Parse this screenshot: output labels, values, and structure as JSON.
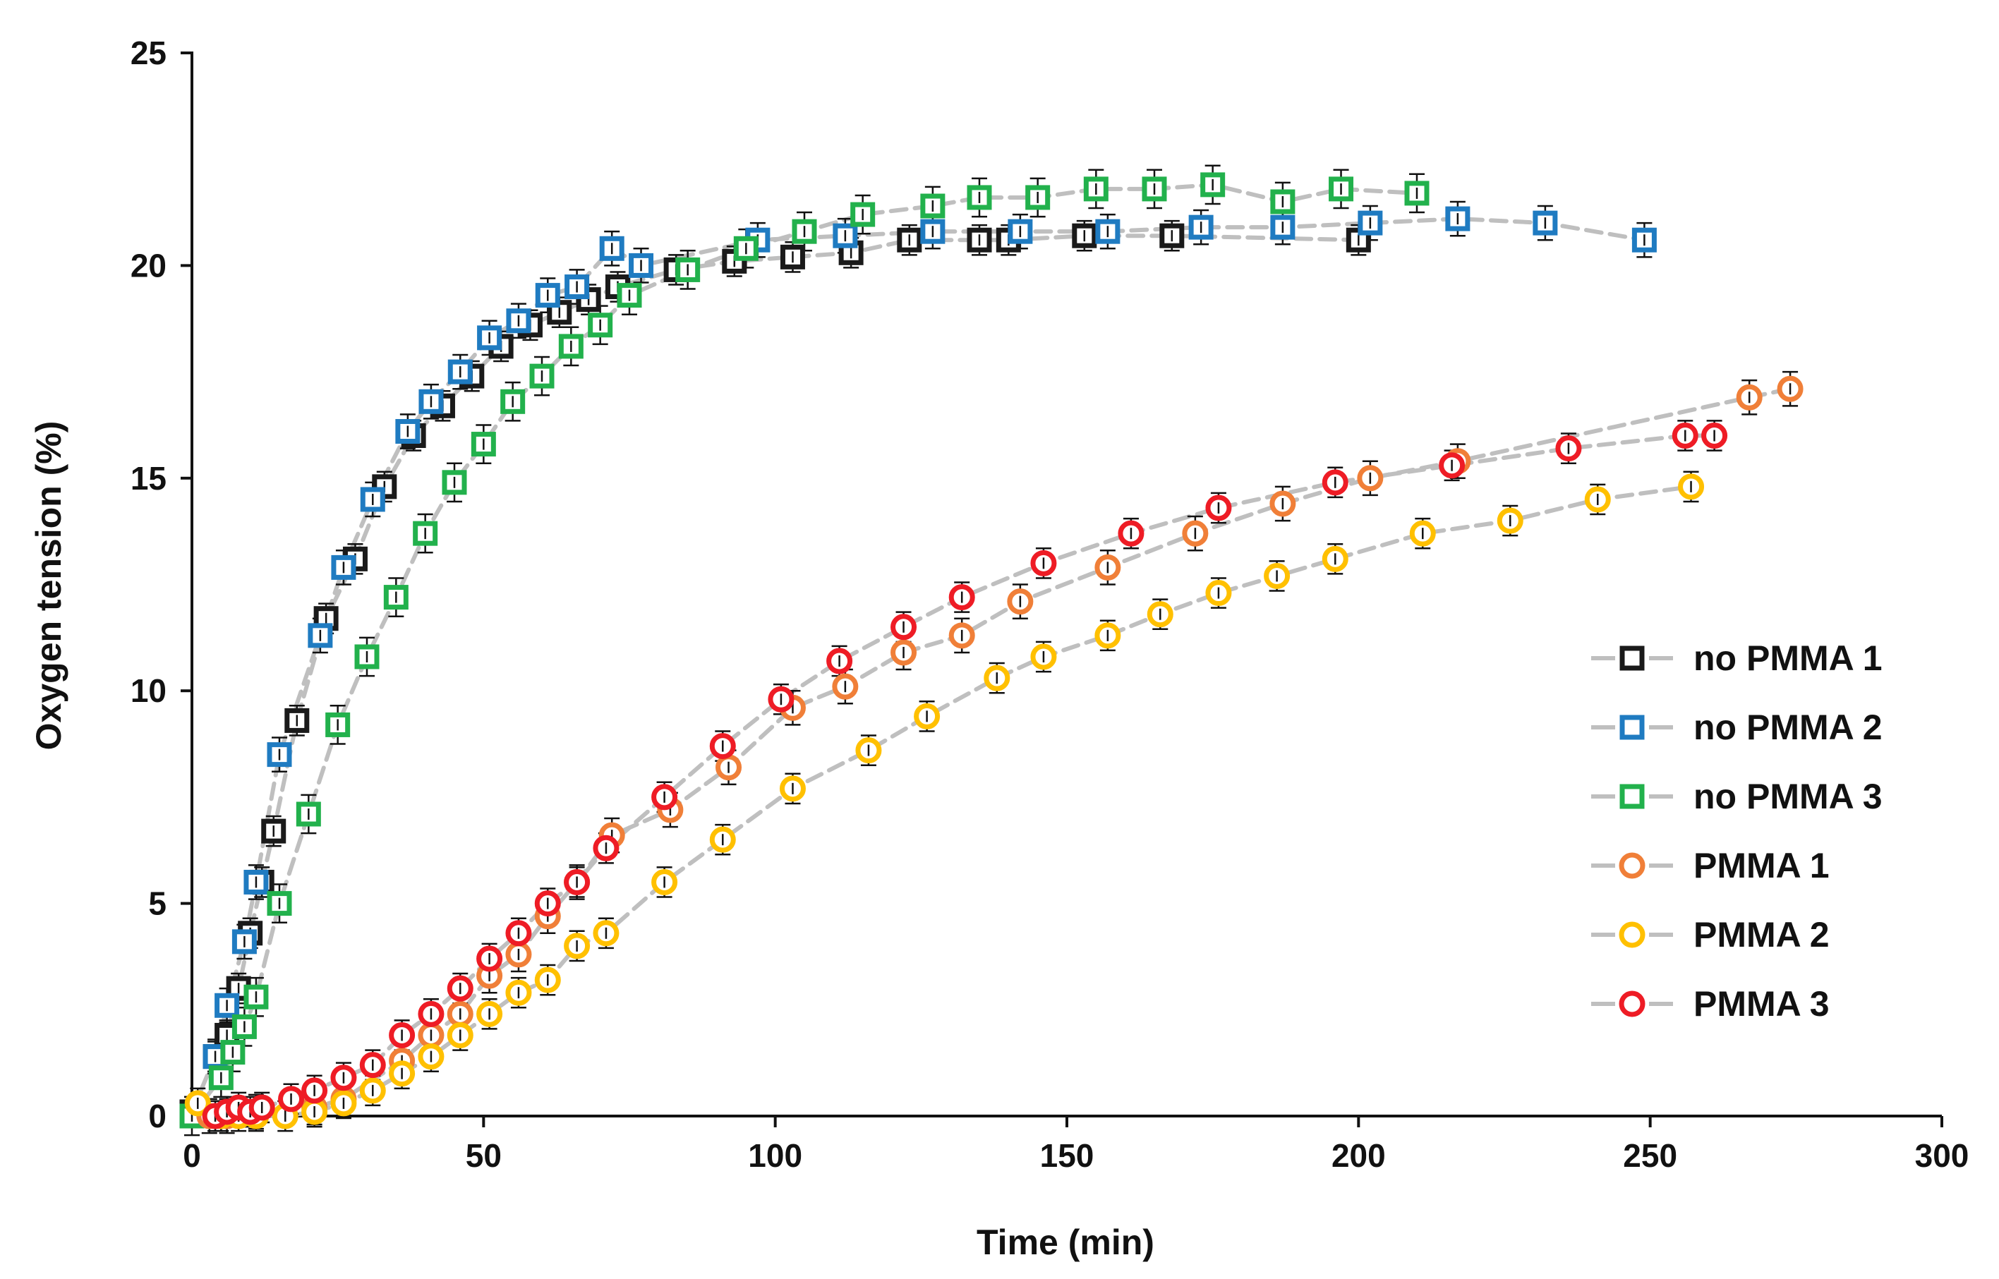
{
  "chart_data": {
    "type": "scatter",
    "title": "",
    "xlabel": "Time (min)",
    "ylabel": "Oxygen tension (%)",
    "xlim": [
      0,
      300
    ],
    "ylim": [
      0,
      25
    ],
    "xticks": [
      0,
      50,
      100,
      150,
      200,
      250,
      300
    ],
    "yticks": [
      0,
      5,
      10,
      15,
      20,
      25
    ],
    "grid": false,
    "legend_position": "right",
    "line_style": "dashed-gray",
    "series": [
      {
        "name": "no PMMA 1",
        "marker": "square",
        "color": "#1a1a1a",
        "x": [
          0,
          4,
          6,
          8,
          10,
          12,
          14,
          18,
          23,
          28,
          33,
          38,
          43,
          48,
          53,
          58,
          63,
          68,
          73,
          83,
          93,
          103,
          113,
          123,
          135,
          140,
          153,
          168,
          200
        ],
        "y": [
          0.1,
          1.4,
          1.9,
          3.0,
          4.3,
          5.5,
          6.7,
          9.3,
          11.7,
          13.1,
          14.8,
          16.0,
          16.7,
          17.4,
          18.1,
          18.6,
          18.9,
          19.2,
          19.5,
          19.9,
          20.1,
          20.2,
          20.3,
          20.6,
          20.6,
          20.6,
          20.7,
          20.7,
          20.6
        ],
        "err": 0.35
      },
      {
        "name": "no PMMA 2",
        "marker": "square",
        "color": "#1f7bc1",
        "x": [
          4,
          6,
          9,
          11,
          15,
          22,
          26,
          31,
          37,
          41,
          46,
          51,
          56,
          61,
          66,
          72,
          77,
          97,
          112,
          127,
          142,
          157,
          173,
          187,
          202,
          217,
          232,
          249
        ],
        "y": [
          1.4,
          2.6,
          4.1,
          5.5,
          8.5,
          11.3,
          12.9,
          14.5,
          16.1,
          16.8,
          17.5,
          18.3,
          18.7,
          19.3,
          19.5,
          20.4,
          20.0,
          20.6,
          20.7,
          20.8,
          20.8,
          20.8,
          20.9,
          20.9,
          21.0,
          21.1,
          21.0,
          20.6
        ],
        "err": 0.4
      },
      {
        "name": "no PMMA 3",
        "marker": "square",
        "color": "#22b14c",
        "x": [
          0,
          5,
          7,
          9,
          11,
          15,
          20,
          25,
          30,
          35,
          40,
          45,
          50,
          55,
          60,
          65,
          70,
          75,
          85,
          95,
          105,
          115,
          127,
          135,
          145,
          155,
          165,
          175,
          187,
          197,
          210
        ],
        "y": [
          0,
          0.9,
          1.5,
          2.1,
          2.8,
          5.0,
          7.1,
          9.2,
          10.8,
          12.2,
          13.7,
          14.9,
          15.8,
          16.8,
          17.4,
          18.1,
          18.6,
          19.3,
          19.9,
          20.4,
          20.8,
          21.2,
          21.4,
          21.6,
          21.6,
          21.8,
          21.8,
          21.9,
          21.5,
          21.8,
          21.7
        ],
        "err": 0.45
      },
      {
        "name": "PMMA 1",
        "marker": "circle",
        "color": "#f07f38",
        "x": [
          3,
          6,
          11,
          21,
          26,
          36,
          41,
          46,
          51,
          56,
          61,
          66,
          72,
          82,
          92,
          103,
          112,
          122,
          132,
          142,
          157,
          172,
          187,
          202,
          217,
          267,
          274
        ],
        "y": [
          0.0,
          0.0,
          0.1,
          0.2,
          0.4,
          1.3,
          1.9,
          2.4,
          3.3,
          3.8,
          4.7,
          5.5,
          6.6,
          7.2,
          8.2,
          9.6,
          10.1,
          10.9,
          11.3,
          12.1,
          12.9,
          13.7,
          14.4,
          15.0,
          15.4,
          16.9,
          17.1
        ],
        "err": 0.4
      },
      {
        "name": "PMMA 2",
        "marker": "circle",
        "color": "#ffc000",
        "x": [
          1,
          5,
          8,
          11,
          16,
          21,
          26,
          31,
          36,
          41,
          46,
          51,
          56,
          61,
          66,
          71,
          81,
          91,
          103,
          116,
          126,
          138,
          146,
          157,
          166,
          176,
          186,
          196,
          211,
          226,
          241,
          257
        ],
        "y": [
          0.3,
          0.0,
          0.0,
          0.0,
          0.0,
          0.1,
          0.3,
          0.6,
          1.0,
          1.4,
          1.9,
          2.4,
          2.9,
          3.2,
          4.0,
          4.3,
          5.5,
          6.5,
          7.7,
          8.6,
          9.4,
          10.3,
          10.8,
          11.3,
          11.8,
          12.3,
          12.7,
          13.1,
          13.7,
          14.0,
          14.5,
          14.8
        ],
        "err": 0.35
      },
      {
        "name": "PMMA 3",
        "marker": "circle",
        "color": "#ee1c25",
        "x": [
          4,
          6,
          8,
          10,
          12,
          17,
          21,
          26,
          31,
          36,
          41,
          46,
          51,
          56,
          61,
          66,
          71,
          81,
          91,
          101,
          111,
          122,
          132,
          146,
          161,
          176,
          196,
          216,
          236,
          256,
          261
        ],
        "y": [
          0.0,
          0.1,
          0.2,
          0.1,
          0.2,
          0.4,
          0.6,
          0.9,
          1.2,
          1.9,
          2.4,
          3.0,
          3.7,
          4.3,
          5.0,
          5.5,
          6.3,
          7.5,
          8.7,
          9.8,
          10.7,
          11.5,
          12.2,
          13.0,
          13.7,
          14.3,
          14.9,
          15.3,
          15.7,
          16.0,
          16.0
        ],
        "err": 0.35
      }
    ]
  }
}
